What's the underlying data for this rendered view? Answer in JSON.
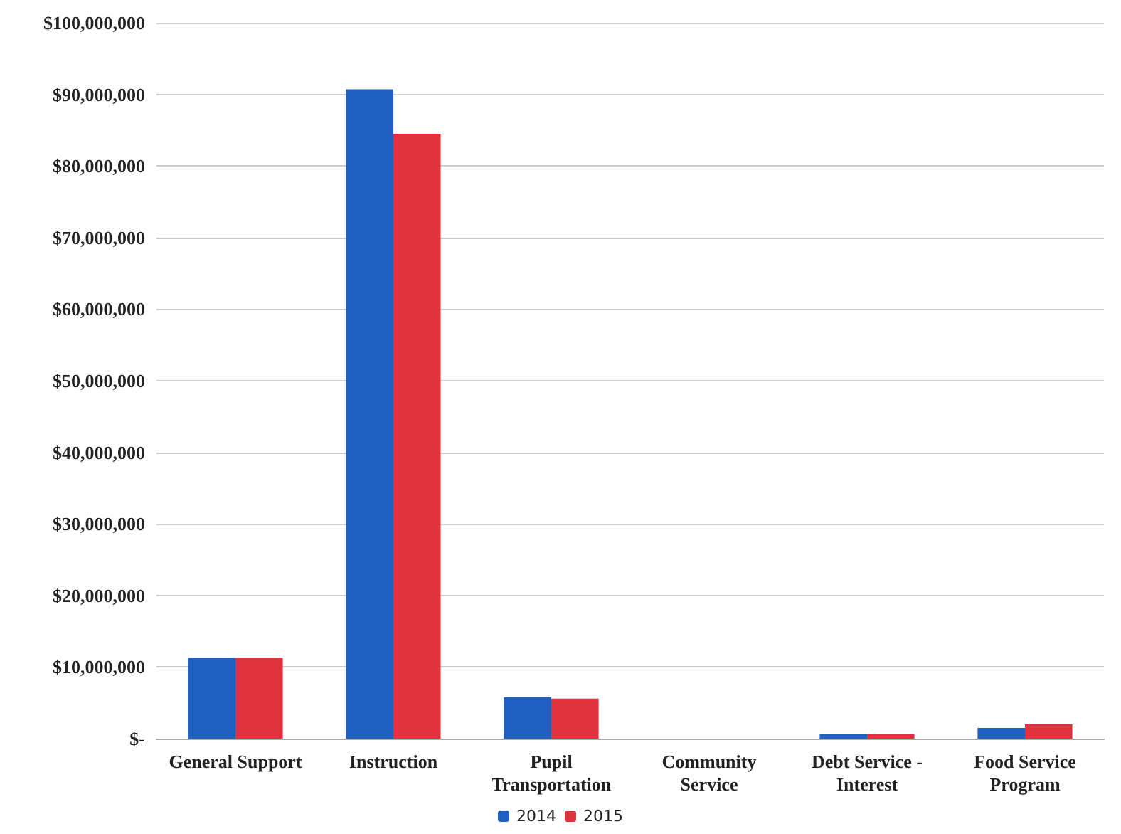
{
  "chart_data": {
    "type": "bar",
    "categories": [
      "General Support",
      "Instruction",
      "Pupil\nTransportation",
      "Community\nService",
      "Debt Service -\nInterest",
      "Food Service\nProgram"
    ],
    "series": [
      {
        "name": "2014",
        "color": "#1f5fbf",
        "values": [
          11300000,
          90700000,
          5800000,
          0,
          600000,
          1500000
        ]
      },
      {
        "name": "2015",
        "color": "#e0323e",
        "values": [
          11300000,
          84500000,
          5600000,
          0,
          600000,
          2000000
        ]
      }
    ],
    "ylim": [
      0,
      100000000
    ],
    "yticks": [
      {
        "value": 0,
        "label": "$-"
      },
      {
        "value": 10000000,
        "label": "$10,000,000"
      },
      {
        "value": 20000000,
        "label": "$20,000,000"
      },
      {
        "value": 30000000,
        "label": "$30,000,000"
      },
      {
        "value": 40000000,
        "label": "$40,000,000"
      },
      {
        "value": 50000000,
        "label": "$50,000,000"
      },
      {
        "value": 60000000,
        "label": "$60,000,000"
      },
      {
        "value": 70000000,
        "label": "$70,000,000"
      },
      {
        "value": 80000000,
        "label": "$80,000,000"
      },
      {
        "value": 90000000,
        "label": "$90,000,000"
      },
      {
        "value": 100000000,
        "label": "$100,000,000"
      }
    ],
    "grid": "y",
    "legend": "bottom"
  }
}
